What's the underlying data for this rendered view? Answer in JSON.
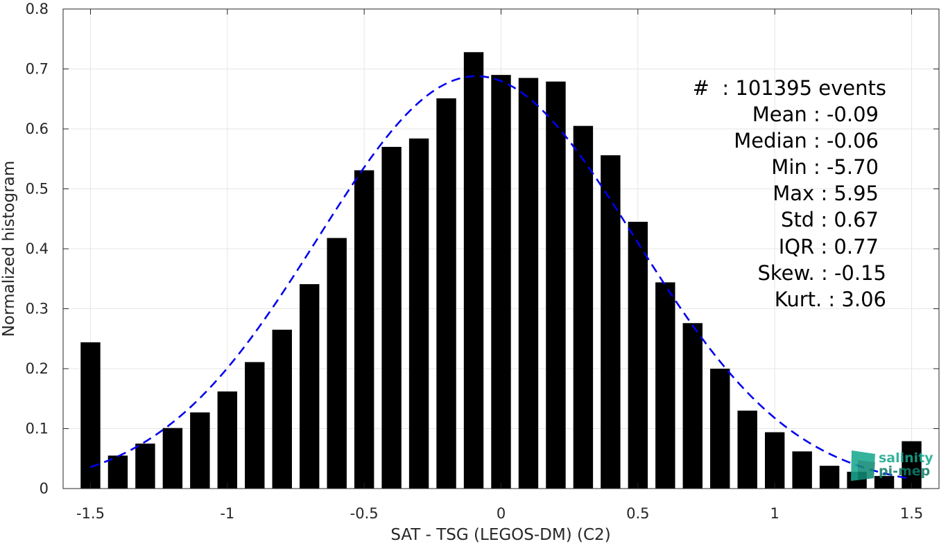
{
  "chart_data": {
    "type": "bar",
    "xlabel": "SAT - TSG (LEGOS-DM) (C2)",
    "ylabel": "Normalized histogram",
    "xlim": [
      -1.6,
      1.6
    ],
    "ylim": [
      0,
      0.8
    ],
    "grid": true,
    "xticks": [
      -1.5,
      -1,
      -0.5,
      0,
      0.5,
      1,
      1.5
    ],
    "xtick_labels": [
      "-1.5",
      "-1",
      "-0.5",
      "0",
      "0.5",
      "1",
      "1.5"
    ],
    "yticks": [
      0,
      0.1,
      0.2,
      0.3,
      0.4,
      0.5,
      0.6,
      0.7,
      0.8
    ],
    "ytick_labels": [
      "0",
      "0.1",
      "0.2",
      "0.3",
      "0.4",
      "0.5",
      "0.6",
      "0.7",
      "0.8"
    ],
    "bar_color": "#000000",
    "bin_centers": [
      -1.5,
      -1.4,
      -1.3,
      -1.2,
      -1.1,
      -1.0,
      -0.9,
      -0.8,
      -0.7,
      -0.6,
      -0.5,
      -0.4,
      -0.3,
      -0.2,
      -0.1,
      0.0,
      0.1,
      0.2,
      0.3,
      0.4,
      0.5,
      0.6,
      0.7,
      0.8,
      0.9,
      1.0,
      1.1,
      1.2,
      1.3,
      1.4,
      1.5
    ],
    "values": [
      0.244,
      0.055,
      0.075,
      0.101,
      0.127,
      0.162,
      0.211,
      0.265,
      0.341,
      0.418,
      0.531,
      0.57,
      0.584,
      0.651,
      0.728,
      0.69,
      0.685,
      0.679,
      0.605,
      0.556,
      0.445,
      0.344,
      0.276,
      0.2,
      0.13,
      0.094,
      0.062,
      0.038,
      0.028,
      0.021,
      0.079
    ],
    "fit_curve": {
      "style": "dashed",
      "color": "#0000ee",
      "mean": -0.09,
      "std": 0.58,
      "peak": 0.688,
      "x_range": [
        -1.5,
        1.5
      ]
    },
    "stats": {
      "count_line": "#  : 101395 events",
      "mean_line": "Mean : -0.09",
      "median_line": "Median : -0.06",
      "min_line": "Min : -5.70",
      "max_line": "Max : 5.95",
      "std_line": "Std : 0.67",
      "iqr_line": "IQR : 0.77",
      "skew_line": "Skew. : -0.15",
      "kurt_line": "Kurt. : 3.06"
    },
    "logo": {
      "line1": "salinity",
      "line2": "pi-mep",
      "color": "#1aa88f"
    }
  }
}
